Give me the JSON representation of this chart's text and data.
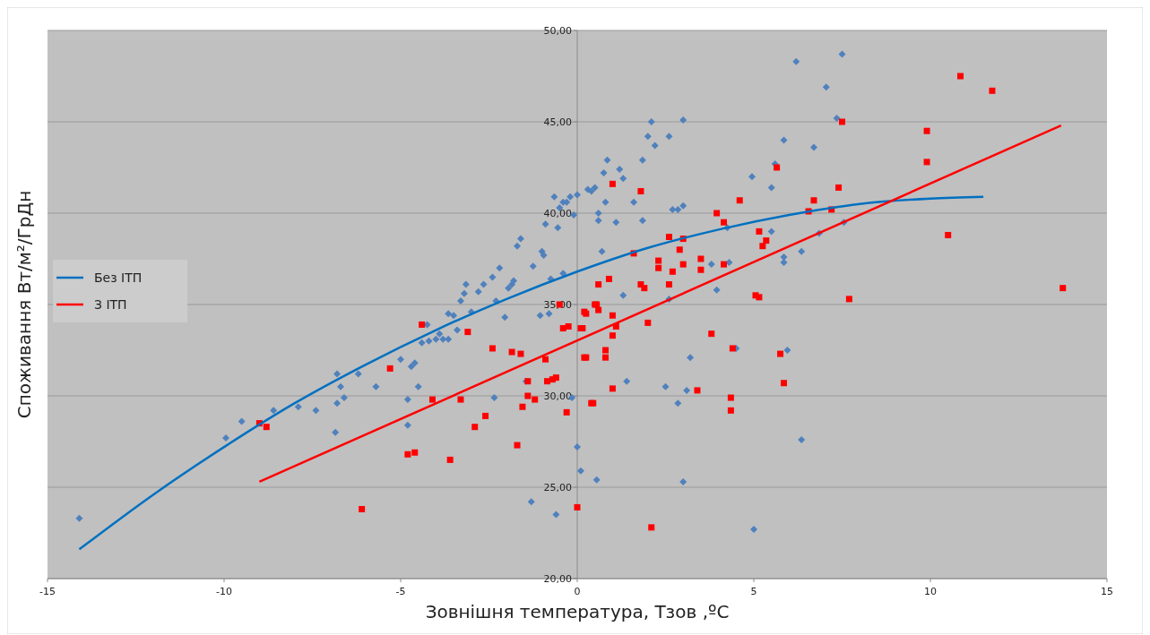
{
  "chart_data": {
    "type": "scatter",
    "xlabel": "Зовнішня температура, Тзов ,ºC",
    "ylabel": "Споживання Вт/м²/ГрДн",
    "xlim": [
      -15,
      15
    ],
    "xticks": [
      -15,
      -10,
      -5,
      0,
      5,
      10,
      15
    ],
    "ylim": [
      20,
      50
    ],
    "yticks": [
      {
        "value": 20,
        "label": "20,00"
      },
      {
        "value": 25,
        "label": "25,00"
      },
      {
        "value": 30,
        "label": "30,00"
      },
      {
        "value": 35,
        "label": "35,00"
      },
      {
        "value": 40,
        "label": "40,00"
      },
      {
        "value": 45,
        "label": "45,00"
      },
      {
        "value": 50,
        "label": "50,00"
      }
    ],
    "grid": "y",
    "legend": "left",
    "series": [
      {
        "marker": "diamond",
        "color": "#4f81bd",
        "x": [
          -14.1,
          -9.95,
          -9.5,
          -8.6,
          -7.9,
          -7.4,
          -6.8,
          -6.85,
          -6.8,
          -6.7,
          -6.6,
          -6.2,
          -5.7,
          -5.0,
          -4.8,
          -4.8,
          -4.7,
          -4.6,
          -4.5,
          -4.4,
          -4.25,
          -4.2,
          -4.0,
          -3.9,
          -3.8,
          -3.65,
          -3.65,
          -3.5,
          -3.4,
          -3.3,
          -3.2,
          -3.15,
          -3.0,
          -2.8,
          -2.65,
          -2.4,
          -2.3,
          -2.2,
          -2.35,
          -2.05,
          -1.95,
          -1.85,
          -1.8,
          -1.7,
          -1.6,
          -1.45,
          -1.3,
          -1.25,
          -1.05,
          -1.0,
          -0.95,
          -0.9,
          -0.8,
          -0.75,
          -0.65,
          -0.6,
          -0.55,
          -0.5,
          -0.4,
          -0.4,
          -0.3,
          -0.2,
          -0.1,
          0.0,
          -0.15,
          0.0,
          0.1,
          0.3,
          0.4,
          0.5,
          0.55,
          0.6,
          0.6,
          0.75,
          0.8,
          0.7,
          0.85,
          1.2,
          1.1,
          1.3,
          1.3,
          1.4,
          1.6,
          1.85,
          1.85,
          2.0,
          2.1,
          2.2,
          2.6,
          2.7,
          2.85,
          3.0,
          3.0,
          2.5,
          2.6,
          3.1,
          2.85,
          3.0,
          3.2,
          3.8,
          3.95,
          4.25,
          4.3,
          4.5,
          4.95,
          5.0,
          5.6,
          5.85,
          5.5,
          5.5,
          5.85,
          5.85,
          5.95,
          6.35,
          6.2,
          6.35,
          6.7,
          7.5,
          7.05,
          7.35,
          7.55,
          6.85
        ],
        "values": [
          23.3,
          27.7,
          28.6,
          29.2,
          29.4,
          29.2,
          31.2,
          28.0,
          29.6,
          30.5,
          29.9,
          31.2,
          30.5,
          32.0,
          29.8,
          28.4,
          31.6,
          31.8,
          30.5,
          32.9,
          33.9,
          33.0,
          33.1,
          33.4,
          33.1,
          34.5,
          33.1,
          34.4,
          33.6,
          35.2,
          35.6,
          36.1,
          34.6,
          35.7,
          36.1,
          36.5,
          35.2,
          37.0,
          29.9,
          34.3,
          35.9,
          36.1,
          36.3,
          38.2,
          38.6,
          30.8,
          24.2,
          37.1,
          34.4,
          37.9,
          37.7,
          39.4,
          34.5,
          36.4,
          40.9,
          23.5,
          39.2,
          40.3,
          40.6,
          36.7,
          40.6,
          40.9,
          39.9,
          41.0,
          29.9,
          27.2,
          25.9,
          41.3,
          41.2,
          41.4,
          25.4,
          40.0,
          39.6,
          42.2,
          40.6,
          37.9,
          42.9,
          42.4,
          39.5,
          41.9,
          35.5,
          30.8,
          40.6,
          39.6,
          42.9,
          44.2,
          45.0,
          43.7,
          44.2,
          40.2,
          40.2,
          40.4,
          45.1,
          30.5,
          35.3,
          30.3,
          29.6,
          25.3,
          32.1,
          37.2,
          35.8,
          39.2,
          37.3,
          32.6,
          42.0,
          22.7,
          42.7,
          44.0,
          41.4,
          39.0,
          37.6,
          37.3,
          32.5,
          27.6,
          48.3,
          37.9,
          43.6,
          48.7,
          46.9,
          45.2,
          39.5,
          38.9
        ]
      },
      {
        "marker": "square",
        "color": "#ff0000",
        "x": [
          -9.0,
          -8.8,
          -6.1,
          -5.3,
          -4.8,
          -4.6,
          -4.4,
          -4.1,
          -3.6,
          -3.3,
          -3.1,
          -2.9,
          -2.6,
          -2.4,
          -1.85,
          -1.7,
          -1.6,
          -1.4,
          -1.55,
          -1.4,
          -1.2,
          -0.9,
          -0.85,
          -0.7,
          -0.6,
          -0.5,
          -0.4,
          -0.25,
          -0.3,
          0.0,
          0.15,
          0.25,
          0.25,
          0.55,
          0.45,
          1.0,
          1.8,
          0.6,
          0.9,
          0.2,
          0.5,
          0.6,
          0.1,
          1.0,
          1.1,
          1.0,
          0.8,
          0.8,
          0.2,
          1.0,
          0.4,
          2.0,
          2.1,
          1.6,
          1.8,
          1.9,
          2.3,
          2.3,
          2.6,
          2.6,
          2.7,
          3.0,
          2.9,
          3.0,
          3.4,
          3.5,
          3.5,
          3.8,
          3.95,
          4.15,
          4.15,
          4.35,
          4.35,
          4.4,
          4.6,
          5.05,
          5.15,
          5.15,
          5.25,
          5.35,
          5.65,
          5.75,
          5.85,
          6.55,
          6.7,
          7.5,
          7.2,
          7.4,
          7.7,
          9.9,
          9.9,
          10.5,
          10.85,
          11.75,
          13.75
        ],
        "values": [
          28.5,
          28.3,
          23.8,
          31.5,
          26.8,
          26.9,
          33.9,
          29.8,
          26.5,
          29.8,
          33.5,
          28.3,
          28.9,
          32.6,
          32.4,
          27.3,
          32.3,
          30.8,
          29.4,
          30.0,
          29.8,
          32.0,
          30.8,
          30.9,
          31.0,
          35.0,
          33.7,
          33.8,
          29.1,
          23.9,
          33.7,
          34.5,
          32.1,
          35.0,
          29.6,
          41.6,
          41.2,
          36.1,
          36.4,
          34.6,
          35.0,
          34.7,
          33.7,
          34.4,
          33.8,
          33.3,
          32.5,
          32.1,
          32.1,
          30.4,
          29.6,
          34.0,
          22.8,
          37.8,
          36.1,
          35.9,
          37.4,
          37.0,
          38.7,
          36.1,
          36.8,
          38.6,
          38.0,
          37.2,
          30.3,
          37.5,
          36.9,
          33.4,
          40.0,
          39.5,
          37.2,
          29.9,
          29.2,
          32.6,
          40.7,
          35.5,
          35.4,
          39.0,
          38.2,
          38.5,
          42.5,
          32.3,
          30.7,
          40.1,
          40.7,
          45.0,
          40.2,
          41.4,
          35.3,
          44.5,
          42.8,
          38.8,
          47.5,
          46.7,
          35.9
        ]
      },
      {
        "type": "line",
        "name": "Без ІТП",
        "color": "#0070c0",
        "x": [
          -14.1,
          -12,
          -10,
          -8,
          -6,
          -4,
          -2,
          0,
          2,
          4,
          6,
          8,
          10,
          11.5
        ],
        "values": [
          21.6,
          24.6,
          27.2,
          29.6,
          31.7,
          33.6,
          35.3,
          36.8,
          38.1,
          39.1,
          39.9,
          40.5,
          40.8,
          40.9
        ]
      },
      {
        "type": "line",
        "name": "З ІТП",
        "color": "#ff0000",
        "x": [
          -9.0,
          13.7
        ],
        "values": [
          25.3,
          44.8
        ]
      }
    ]
  }
}
